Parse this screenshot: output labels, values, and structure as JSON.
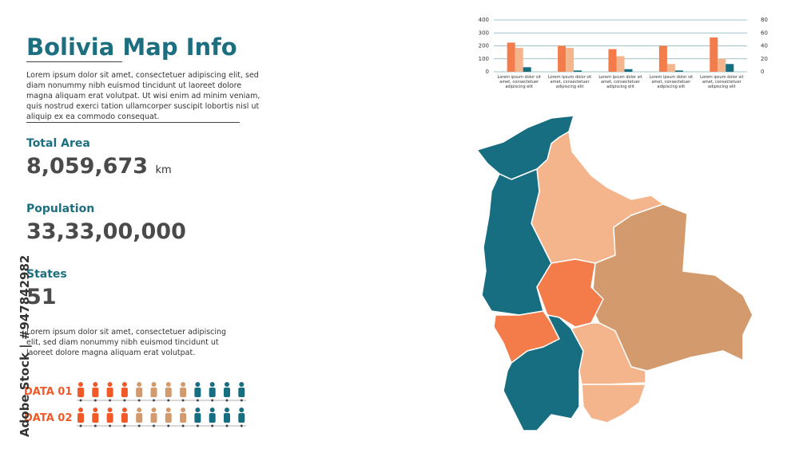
{
  "header": {
    "title": "Bolivia Map Info",
    "intro": "Lorem ipsum dolor sit amet, consectetuer adipiscing elit, sed diam nonummy nibh euismod tincidunt ut laoreet dolore magna aliquam erat volutpat. Ut wisi enim ad minim veniam, quis nostrud exerci tation ullamcorper suscipit lobortis nisl ut aliquip ex ea commodo consequat."
  },
  "stats": [
    {
      "label": "Total Area",
      "value": "8,059,673",
      "unit": "km"
    },
    {
      "label": "Population",
      "value": "33,33,00,000"
    },
    {
      "label": "States",
      "value": "51"
    }
  ],
  "note": "Lorem ipsum dolor sit amet, consectetuer adipiscing elit, sed diam nonummy nibh euismod tincidunt ut laoreet dolore magna aliquam erat volutpat.",
  "data_rows": [
    {
      "label": "DATA 01"
    },
    {
      "label": "DATA 02"
    }
  ],
  "watermark": "Adobe Stock | #947842982",
  "chart_data": {
    "type": "bar",
    "categories": [
      "Lorem ipsum dolor sit amet, consectetuer adipiscing elit",
      "Lorem ipsum dolor sit amet, consectetuer adipiscing elit",
      "Lorem ipsum dolor sit amet, consectetuer adipiscing elit",
      "Lorem ipsum dolor sit amet, consectetuer adipiscing elit",
      "Lorem ipsum dolor sit amet, consectetuer adipiscing elit"
    ],
    "series": [
      {
        "color": "#f47b4a",
        "values": [
          225,
          200,
          175,
          200,
          265
        ]
      },
      {
        "color": "#f5b58c",
        "values": [
          185,
          185,
          120,
          60,
          100
        ]
      },
      {
        "color": "#166e80",
        "values": [
          35,
          10,
          20,
          10,
          60
        ]
      }
    ],
    "ylim": [
      0,
      400
    ],
    "yticks": [
      0,
      100,
      200,
      300,
      400
    ],
    "y2lim": [
      0,
      80
    ],
    "y2ticks": [
      0,
      20,
      40,
      60,
      80
    ],
    "grid": true
  }
}
